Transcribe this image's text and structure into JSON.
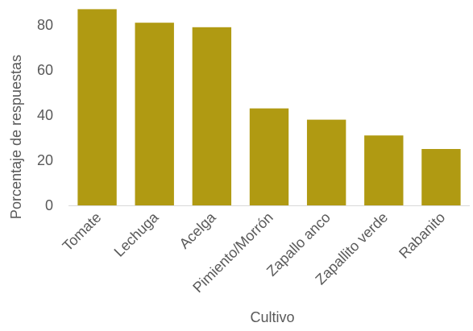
{
  "chart_data": {
    "type": "bar",
    "title": "",
    "xlabel": "Cultivo",
    "ylabel": "Porcentaje de respuestas",
    "categories": [
      "Tomate",
      "Lechuga",
      "Acelga",
      "Pimiento/Morrón",
      "Zapallo anco",
      "Zapallito verde",
      "Rabanito"
    ],
    "values": [
      87,
      81,
      79,
      43,
      38,
      31,
      25
    ],
    "ylim": [
      0,
      90
    ],
    "yticks": [
      0,
      20,
      40,
      60,
      80
    ],
    "grid": false,
    "legend": "none",
    "bar_color": "#b09a12"
  }
}
